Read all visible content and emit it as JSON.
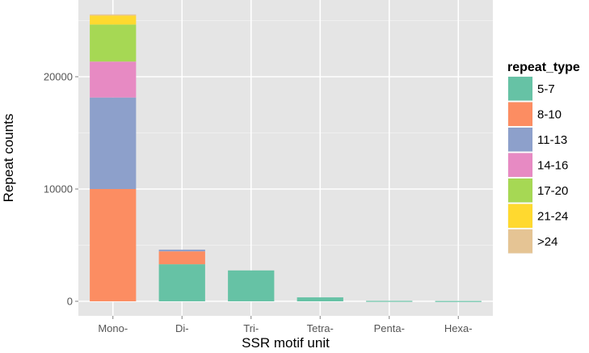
{
  "chart_data": {
    "type": "bar",
    "stacked": true,
    "xlabel": "SSR motif unit",
    "ylabel": "Repeat counts",
    "categories": [
      "Mono-",
      "Di-",
      "Tri-",
      "Tetra-",
      "Penta-",
      "Hexa-"
    ],
    "ylim": [
      0,
      26000
    ],
    "yticks": [
      0,
      10000,
      20000
    ],
    "ytick_labels": [
      "0",
      "10000",
      "20000"
    ],
    "grid": true,
    "legend": {
      "title": "repeat_type",
      "position": "right"
    },
    "series": [
      {
        "name": "5-7",
        "color": "#66c2a5",
        "values": [
          0,
          3300,
          2750,
          350,
          40,
          30
        ]
      },
      {
        "name": "8-10",
        "color": "#fc8d62",
        "values": [
          10000,
          1150,
          0,
          0,
          0,
          0
        ]
      },
      {
        "name": "11-13",
        "color": "#8da0cb",
        "values": [
          8150,
          150,
          0,
          0,
          0,
          0
        ]
      },
      {
        "name": "14-16",
        "color": "#e78ac3",
        "values": [
          3200,
          0,
          0,
          0,
          0,
          0
        ]
      },
      {
        "name": "17-20",
        "color": "#a6d854",
        "values": [
          3300,
          0,
          0,
          0,
          0,
          0
        ]
      },
      {
        "name": "21-24",
        "color": "#ffd92f",
        "values": [
          800,
          0,
          0,
          0,
          0,
          0
        ]
      },
      {
        "name": ">24",
        "color": "#e5c494",
        "values": [
          100,
          0,
          0,
          0,
          0,
          0
        ]
      }
    ],
    "panel_color": "#e5e5e5",
    "grid_color": "#ffffff"
  }
}
